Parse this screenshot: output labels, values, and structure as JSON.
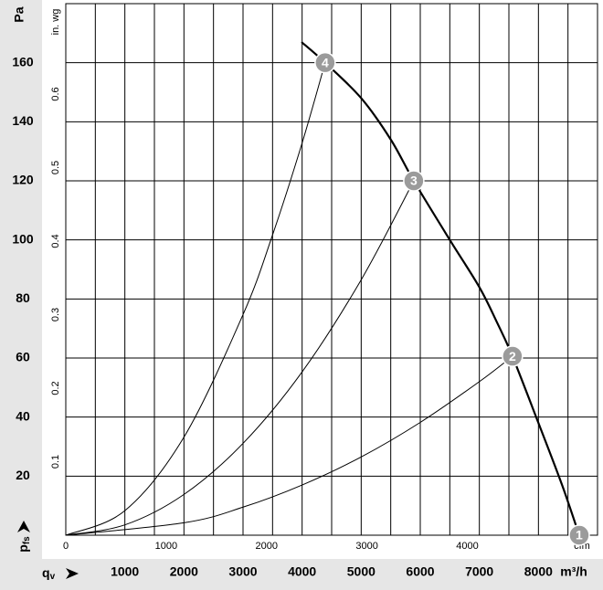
{
  "chart_data": {
    "type": "line",
    "ylabel": "Pa",
    "ylabel_symbol": "p",
    "ylabel_sub": "fs",
    "xlabel_symbol": "q",
    "xlabel_sub": "v",
    "xlabel": "m³/h",
    "y2label": "in. wg",
    "x2label": "cfm",
    "xlim": [
      0,
      9000
    ],
    "ylim": [
      0,
      180
    ],
    "xticks": [
      1000,
      2000,
      3000,
      4000,
      5000,
      6000,
      7000,
      8000
    ],
    "yticks": [
      20,
      40,
      60,
      80,
      100,
      120,
      140,
      160
    ],
    "xgrid": [
      500,
      1000,
      1500,
      2000,
      2500,
      3000,
      3500,
      4000,
      4500,
      5000,
      5500,
      6000,
      6500,
      7000,
      7500,
      8000,
      8500
    ],
    "x2lim": [
      0,
      5297
    ],
    "x2ticks": [
      0,
      1000,
      2000,
      3000,
      4000
    ],
    "y2lim": [
      0,
      0.723
    ],
    "y2ticks": [
      0.1,
      0.2,
      0.3,
      0.4,
      0.5,
      0.6
    ],
    "grid": true,
    "series": [
      {
        "color": "#000000",
        "width": 2.2,
        "x": [
          3990,
          4390,
          5000,
          5500,
          5890,
          6500,
          7000,
          7300,
          7560,
          8000,
          8400,
          8690
        ],
        "values": [
          167,
          160,
          148,
          134,
          120,
          100,
          84,
          72,
          60.6,
          38,
          17,
          0
        ]
      },
      {
        "color": "#000000",
        "width": 1,
        "x": [
          0,
          1000,
          2000,
          3000,
          3500,
          4000,
          4390
        ],
        "values": [
          0,
          8.3,
          33.2,
          74.7,
          101.7,
          132.8,
          160
        ]
      },
      {
        "color": "#000000",
        "width": 1,
        "x": [
          0,
          1000,
          2000,
          3000,
          4000,
          5000,
          5890
        ],
        "values": [
          0,
          3.5,
          13.8,
          31.1,
          55.3,
          86.5,
          120
        ]
      },
      {
        "color": "#000000",
        "width": 1,
        "x": [
          0,
          2000,
          3000,
          4000,
          5000,
          6000,
          7000,
          7560
        ],
        "values": [
          0,
          4.2,
          9.5,
          17,
          26.5,
          38.2,
          52,
          60.6
        ]
      }
    ],
    "points": {
      "color": "#9b9b9b",
      "x": [
        8690,
        7560,
        5890,
        4390
      ],
      "values": [
        0,
        60.6,
        120,
        160
      ],
      "labels": [
        "1",
        "2",
        "3",
        "4"
      ]
    }
  }
}
